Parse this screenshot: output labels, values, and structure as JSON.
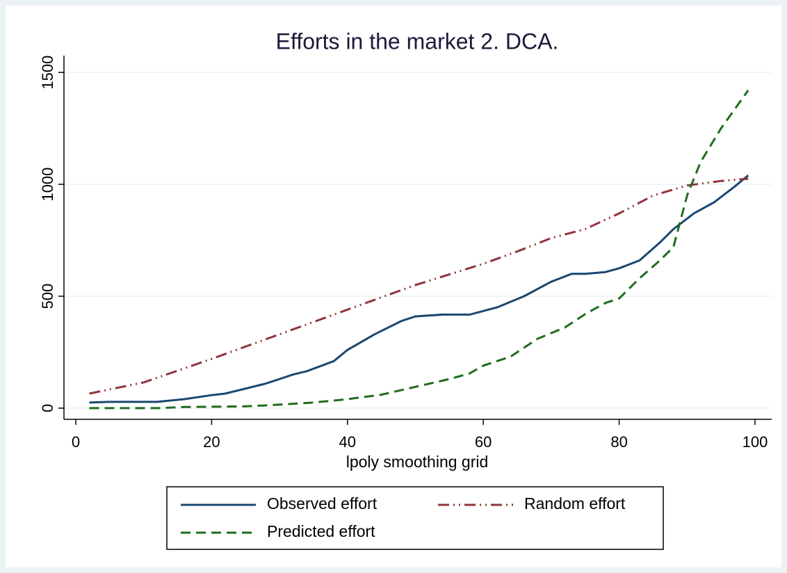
{
  "chart_data": {
    "type": "line",
    "title": "Efforts in the market 2. DCA.",
    "x_label": "lpoly smoothing grid",
    "xlim": [
      -1.74,
      102.46
    ],
    "xticks": [
      0,
      20,
      40,
      60,
      80,
      100
    ],
    "ylim": [
      -50,
      1575
    ],
    "yticks": [
      0,
      500,
      1000,
      1500
    ],
    "grid": true,
    "legend": "bottom",
    "series": [
      {
        "name": "Observed effort",
        "color": "#1a476f",
        "style": "solid",
        "x": [
          2,
          5,
          12,
          16,
          20,
          22,
          28,
          32,
          34,
          38,
          40,
          44,
          48,
          50,
          54,
          58,
          62,
          66,
          70,
          73,
          75,
          78,
          80,
          83,
          86,
          88,
          91,
          94,
          97,
          99
        ],
        "values": [
          25,
          28,
          28,
          40,
          58,
          65,
          110,
          150,
          165,
          210,
          260,
          330,
          390,
          410,
          418,
          418,
          450,
          500,
          565,
          600,
          600,
          608,
          625,
          660,
          740,
          800,
          870,
          920,
          990,
          1040
        ]
      },
      {
        "name": "Random effort",
        "color": "#90353b",
        "style": "dash-dot-dot",
        "x": [
          2,
          10,
          20,
          30,
          40,
          50,
          60,
          65,
          70,
          75,
          80,
          85,
          90,
          95,
          99
        ],
        "values": [
          65,
          115,
          220,
          330,
          440,
          550,
          645,
          700,
          760,
          800,
          870,
          950,
          995,
          1015,
          1025
        ]
      },
      {
        "name": "Predicted effort",
        "color": "#1e6b1e",
        "style": "dash",
        "x": [
          2,
          12,
          16,
          25,
          28,
          35,
          40,
          45,
          50,
          55,
          58,
          60,
          64,
          68,
          72,
          75,
          78,
          80,
          83,
          86,
          88,
          90,
          92,
          95,
          99
        ],
        "values": [
          0,
          0,
          5,
          8,
          12,
          25,
          40,
          60,
          95,
          130,
          155,
          190,
          230,
          310,
          360,
          420,
          470,
          490,
          580,
          660,
          720,
          950,
          1100,
          1250,
          1420
        ]
      }
    ]
  }
}
